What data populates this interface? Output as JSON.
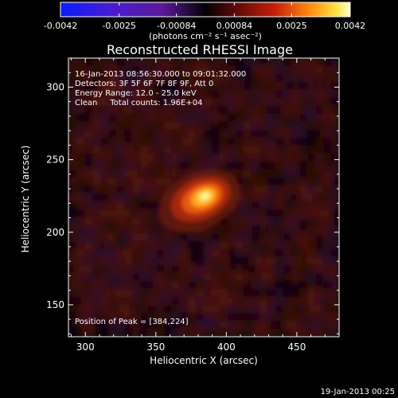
{
  "colorbar": {
    "ticks": [
      "-0.0042",
      "-0.0025",
      "-0.00084",
      "0.00084",
      "0.0025",
      "0.0042"
    ],
    "unit_label": "(photons cm⁻² s⁻¹ asec⁻²)",
    "range": [
      -0.0042,
      0.0042
    ]
  },
  "title": "Reconstructed RHESSI Image",
  "info": {
    "line1": "16-Jan-2013 08:56:30.000 to 09:01:32.000",
    "line2": "Detectors: 3F 5F 6F 7F 8F 9F, Att 0",
    "line3": "Energy Range: 12.0 - 25.0 keV",
    "line4": "Clean     Total counts: 1.96E+04"
  },
  "peak_label": "Position of Peak = [384,224]",
  "footer_date": "19-Jan-2013 00:25",
  "chart_data": {
    "type": "heatmap",
    "title": "Reconstructed RHESSI Image",
    "xlabel": "Heliocentric X (arcsec)",
    "ylabel": "Heliocentric Y (arcsec)",
    "xlim": [
      288,
      480
    ],
    "ylim": [
      128,
      320
    ],
    "x_ticks": [
      300,
      350,
      400,
      450
    ],
    "y_ticks": [
      150,
      200,
      250,
      300
    ],
    "peak": {
      "x": 384,
      "y": 224
    },
    "color_range": [
      -0.0042,
      0.0042
    ],
    "colormap": "blue-purple-black-red-orange-yellow-white",
    "source_value_at_peak": 0.0042
  }
}
